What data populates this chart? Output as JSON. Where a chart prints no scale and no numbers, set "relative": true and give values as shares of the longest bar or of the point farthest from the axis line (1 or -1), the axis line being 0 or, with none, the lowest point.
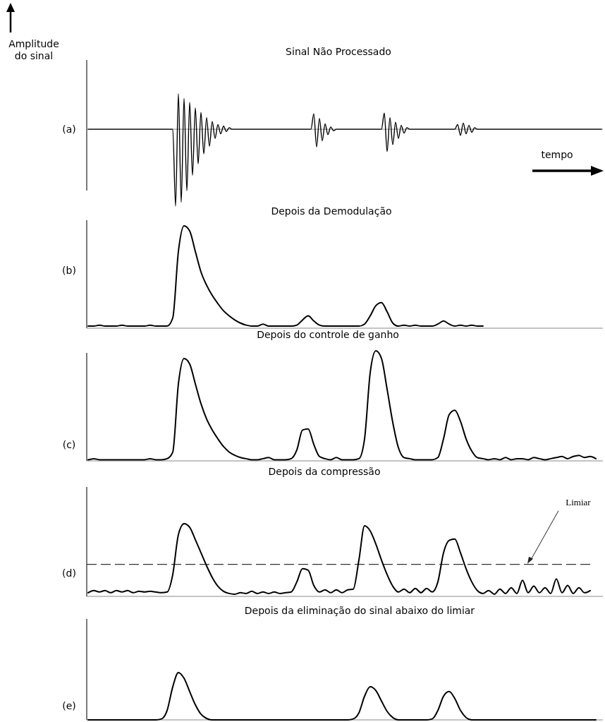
{
  "chart_data": [
    {
      "type": "line",
      "title": "Sinal Não Processado",
      "xlabel": "tempo",
      "ylabel": "Amplitude do sinal",
      "annotations": [
        "(a)"
      ],
      "relative": true,
      "color": "#000000",
      "categories": [
        null,
        null,
        null,
        null,
        null,
        null,
        null,
        null,
        null,
        null,
        null,
        null,
        null,
        null,
        null,
        null,
        null,
        null,
        null,
        null,
        null,
        null,
        null,
        null,
        null,
        null,
        null,
        null,
        null,
        null,
        null,
        null,
        null,
        null,
        null,
        null,
        null,
        null,
        null,
        null,
        null,
        null,
        null,
        null,
        null,
        null,
        null,
        null,
        null,
        null,
        null,
        null,
        null,
        null,
        null,
        null,
        null,
        null,
        null,
        null,
        null,
        null,
        null,
        null,
        null,
        null,
        null,
        null,
        null,
        null,
        null,
        null,
        null,
        null,
        null,
        null,
        null,
        null,
        null,
        null,
        null,
        null,
        null,
        null,
        null,
        null,
        null,
        null,
        null,
        null,
        null,
        null,
        null,
        null,
        null,
        null,
        null,
        null,
        null,
        null,
        null,
        null,
        null,
        null,
        null,
        null,
        null,
        null,
        null,
        null,
        null,
        null,
        null,
        null,
        null,
        null,
        null,
        null,
        null,
        null,
        null,
        null,
        null,
        null,
        null,
        null,
        null,
        null,
        null,
        null,
        null,
        null,
        null,
        null,
        null,
        null,
        null,
        null,
        null,
        null,
        null,
        null,
        null,
        null,
        null,
        null,
        null,
        null,
        null,
        null,
        null,
        null,
        null,
        null,
        null,
        null,
        null,
        null,
        null,
        null,
        null,
        null,
        null,
        null,
        null,
        null,
        null,
        null,
        null,
        null,
        null,
        null,
        null,
        null,
        null,
        null,
        null,
        null,
        null,
        null,
        null,
        null,
        null
      ],
      "values": [
        0,
        0,
        0,
        0,
        0,
        0,
        0,
        0,
        0,
        0,
        0,
        0,
        0,
        0,
        0,
        0,
        0,
        0,
        0,
        0,
        0,
        0,
        0,
        0,
        0,
        0,
        0,
        0,
        0,
        0,
        0,
        -1.0,
        0.46,
        -0.95,
        0.4,
        -0.8,
        0.35,
        -0.6,
        0.28,
        -0.45,
        0.22,
        -0.32,
        0.15,
        -0.22,
        0.1,
        -0.12,
        0.06,
        -0.06,
        0.04,
        -0.03,
        0.02,
        0,
        0,
        0,
        0,
        0,
        0,
        0,
        0,
        0,
        0,
        0,
        0,
        0,
        0,
        0,
        0,
        0,
        0,
        0,
        0,
        0,
        0,
        0,
        0,
        0,
        0,
        0,
        0,
        0,
        0.2,
        -0.23,
        0.14,
        -0.15,
        0.07,
        -0.07,
        0.03,
        -0.02,
        0,
        0,
        0,
        0,
        0,
        0,
        0,
        0,
        0,
        0,
        0,
        0,
        0,
        0,
        0,
        0,
        0,
        0.21,
        -0.29,
        0.15,
        -0.2,
        0.09,
        -0.12,
        0.05,
        -0.05,
        0.02,
        0,
        0,
        0,
        0,
        0,
        0,
        0,
        0,
        0,
        0,
        0,
        0,
        0,
        0,
        0,
        0,
        0,
        0.06,
        -0.08,
        0.08,
        -0.06,
        0.05,
        -0.04,
        0.02,
        0,
        0,
        0,
        0,
        0,
        0,
        0,
        0,
        0,
        0,
        0,
        0,
        0,
        0,
        0,
        0,
        0,
        0,
        0,
        0,
        0,
        0,
        0,
        0,
        0,
        0,
        0,
        0,
        0,
        0,
        0,
        0,
        0,
        0,
        0,
        0,
        0,
        0,
        0,
        0,
        0,
        0,
        0,
        0,
        0
      ]
    },
    {
      "type": "line",
      "title": "Depois da Demodulação",
      "annotations": [
        "(b)"
      ],
      "relative": true,
      "color": "#000000",
      "categories": [
        null,
        null,
        null,
        null,
        null,
        null,
        null,
        null,
        null,
        null,
        null,
        null,
        null,
        null,
        null,
        null,
        null,
        null,
        null,
        null,
        null,
        null,
        null,
        null,
        null,
        null,
        null,
        null,
        null,
        null,
        null,
        null,
        null,
        null,
        null,
        null,
        null,
        null,
        null,
        null,
        null,
        null,
        null,
        null,
        null,
        null,
        null,
        null,
        null,
        null,
        null,
        null,
        null,
        null,
        null,
        null,
        null,
        null,
        null,
        null,
        null,
        null,
        null,
        null,
        null,
        null,
        null,
        null,
        null,
        null,
        null,
        null,
        null,
        null,
        null,
        null,
        null,
        null,
        null,
        null,
        null,
        null,
        null,
        null,
        null,
        null,
        null,
        null,
        null,
        null,
        null
      ],
      "values": [
        0.02,
        0.02,
        0.03,
        0.02,
        0.02,
        0.02,
        0.03,
        0.02,
        0.02,
        0.02,
        0.02,
        0.03,
        0.02,
        0.02,
        0.02,
        0.1,
        0.75,
        1,
        0.95,
        0.75,
        0.55,
        0.42,
        0.32,
        0.24,
        0.17,
        0.12,
        0.08,
        0.05,
        0.03,
        0.02,
        0.02,
        0.04,
        0.02,
        0.02,
        0.02,
        0.02,
        0.02,
        0.03,
        0.08,
        0.12,
        0.07,
        0.03,
        0.02,
        0.02,
        0.02,
        0.02,
        0.02,
        0.02,
        0.02,
        0.04,
        0.12,
        0.22,
        0.25,
        0.16,
        0.05,
        0.02,
        0.03,
        0.02,
        0.03,
        0.02,
        0.02,
        0.02,
        0.04,
        0.07,
        0.04,
        0.02,
        0.03,
        0.02,
        0.03,
        0.02,
        0.02,
        null,
        null,
        null,
        null,
        null,
        null,
        null,
        null,
        null,
        null,
        null,
        null,
        null,
        null,
        null,
        null,
        null,
        null,
        null,
        null
      ]
    },
    {
      "type": "line",
      "title": "Depois do controle de ganho",
      "annotations": [
        "(c)"
      ],
      "relative": true,
      "color": "#000000",
      "categories": [
        null,
        null,
        null,
        null,
        null,
        null,
        null,
        null,
        null,
        null,
        null,
        null,
        null,
        null,
        null,
        null,
        null,
        null,
        null,
        null,
        null,
        null,
        null,
        null,
        null,
        null,
        null,
        null,
        null,
        null,
        null,
        null,
        null,
        null,
        null,
        null,
        null,
        null,
        null,
        null,
        null,
        null,
        null,
        null,
        null,
        null,
        null,
        null,
        null,
        null,
        null,
        null,
        null,
        null,
        null,
        null,
        null,
        null,
        null,
        null,
        null,
        null,
        null,
        null,
        null,
        null,
        null,
        null,
        null,
        null,
        null,
        null,
        null,
        null,
        null,
        null,
        null,
        null,
        null,
        null,
        null,
        null,
        null,
        null,
        null,
        null,
        null,
        null,
        null,
        null,
        null
      ],
      "values": [
        0.01,
        0.02,
        0.01,
        0.01,
        0.01,
        0.01,
        0.01,
        0.01,
        0.01,
        0.01,
        0.01,
        0.02,
        0.01,
        0.01,
        0.02,
        0.08,
        0.7,
        0.93,
        0.88,
        0.7,
        0.52,
        0.38,
        0.28,
        0.2,
        0.13,
        0.08,
        0.05,
        0.03,
        0.02,
        0.01,
        0.01,
        0.02,
        0.03,
        0.01,
        0.01,
        0.01,
        0.02,
        0.1,
        0.28,
        0.29,
        0.15,
        0.04,
        0.02,
        0.01,
        0.03,
        0.01,
        0.01,
        0.01,
        0.02,
        0.2,
        0.8,
        1,
        0.93,
        0.65,
        0.35,
        0.12,
        0.03,
        0.02,
        0.01,
        0.01,
        0.01,
        0.01,
        0.03,
        0.2,
        0.42,
        0.46,
        0.36,
        0.2,
        0.09,
        0.03,
        0.02,
        0.01,
        0.02,
        0.01,
        0.03,
        0.01,
        0.02,
        0.02,
        0.01,
        0.03,
        0.02,
        0.01,
        0.02,
        0.03,
        0.04,
        0.02,
        0.04,
        0.05,
        0.03,
        0.04,
        0.02
      ]
    },
    {
      "type": "line",
      "title": "Depois da compressão",
      "annotations": [
        "(d)"
      ],
      "relative": true,
      "color": "#000000",
      "ref_lines": [
        {
          "axis": "y",
          "value": 0.44,
          "label": "Limiar",
          "line_style": "dashed"
        }
      ],
      "categories": [
        null,
        null,
        null,
        null,
        null,
        null,
        null,
        null,
        null,
        null,
        null,
        null,
        null,
        null,
        null,
        null,
        null,
        null,
        null,
        null,
        null,
        null,
        null,
        null,
        null,
        null,
        null,
        null,
        null,
        null,
        null,
        null,
        null,
        null,
        null,
        null,
        null,
        null,
        null,
        null,
        null,
        null,
        null,
        null,
        null,
        null,
        null,
        null,
        null,
        null,
        null,
        null,
        null,
        null,
        null,
        null,
        null,
        null,
        null,
        null,
        null,
        null,
        null,
        null,
        null,
        null,
        null,
        null,
        null,
        null,
        null,
        null,
        null,
        null,
        null,
        null,
        null,
        null,
        null,
        null,
        null,
        null,
        null,
        null,
        null,
        null,
        null,
        null,
        null,
        null,
        null
      ],
      "values": [
        0.05,
        0.08,
        0.06,
        0.08,
        0.05,
        0.08,
        0.06,
        0.08,
        0.05,
        0.07,
        0.06,
        0.07,
        0.06,
        0.05,
        0.06,
        0.3,
        0.85,
        1,
        0.95,
        0.78,
        0.6,
        0.42,
        0.26,
        0.14,
        0.07,
        0.04,
        0.03,
        0.05,
        0.04,
        0.07,
        0.04,
        0.06,
        0.04,
        0.06,
        0.04,
        0.05,
        0.06,
        0.2,
        0.38,
        0.36,
        0.15,
        0.06,
        0.09,
        0.05,
        0.09,
        0.05,
        0.09,
        0.1,
        0.5,
        0.97,
        0.9,
        0.72,
        0.5,
        0.3,
        0.14,
        0.06,
        0.1,
        0.05,
        0.11,
        0.05,
        0.11,
        0.06,
        0.2,
        0.6,
        0.77,
        0.79,
        0.6,
        0.38,
        0.2,
        0.08,
        0.04,
        0.08,
        0.03,
        0.1,
        0.04,
        0.12,
        0.04,
        0.22,
        0.05,
        0.14,
        0.05,
        0.12,
        0.04,
        0.24,
        0.05,
        0.15,
        0.04,
        0.12,
        0.05,
        0.08,
        null
      ]
    },
    {
      "type": "line",
      "title": "Depois da eliminação do sinal abaixo do limiar",
      "annotations": [
        "(e)"
      ],
      "relative": true,
      "color": "#000000",
      "categories": [
        null,
        null,
        null,
        null,
        null,
        null,
        null,
        null,
        null,
        null,
        null,
        null,
        null,
        null,
        null,
        null,
        null,
        null,
        null,
        null,
        null,
        null,
        null,
        null,
        null,
        null,
        null,
        null,
        null,
        null,
        null,
        null,
        null,
        null,
        null,
        null,
        null,
        null,
        null,
        null,
        null,
        null,
        null,
        null,
        null,
        null,
        null,
        null,
        null,
        null,
        null,
        null,
        null,
        null,
        null,
        null,
        null,
        null,
        null,
        null,
        null,
        null,
        null,
        null,
        null,
        null,
        null,
        null,
        null,
        null,
        null,
        null,
        null,
        null,
        null,
        null,
        null,
        null,
        null,
        null,
        null,
        null,
        null,
        null,
        null,
        null,
        null,
        null,
        null,
        null,
        null
      ],
      "values": [
        0,
        0,
        0,
        0,
        0,
        0,
        0,
        0,
        0,
        0,
        0,
        0,
        0,
        0.02,
        0.2,
        0.7,
        1,
        0.88,
        0.6,
        0.32,
        0.12,
        0.03,
        0,
        0,
        0,
        0,
        0,
        0,
        0,
        0,
        0,
        0,
        0,
        0,
        0,
        0,
        0,
        0,
        0,
        0,
        0,
        0,
        0,
        0,
        0,
        0,
        0,
        0.02,
        0.15,
        0.5,
        0.7,
        0.62,
        0.4,
        0.18,
        0.05,
        0,
        0,
        0,
        0,
        0,
        0,
        0.02,
        0.2,
        0.5,
        0.6,
        0.45,
        0.2,
        0.05,
        0,
        0,
        0,
        0,
        0,
        0,
        0,
        0,
        0,
        0,
        0,
        0,
        0,
        0,
        0,
        0,
        0,
        0,
        0,
        0,
        0,
        0,
        0
      ]
    }
  ]
}
